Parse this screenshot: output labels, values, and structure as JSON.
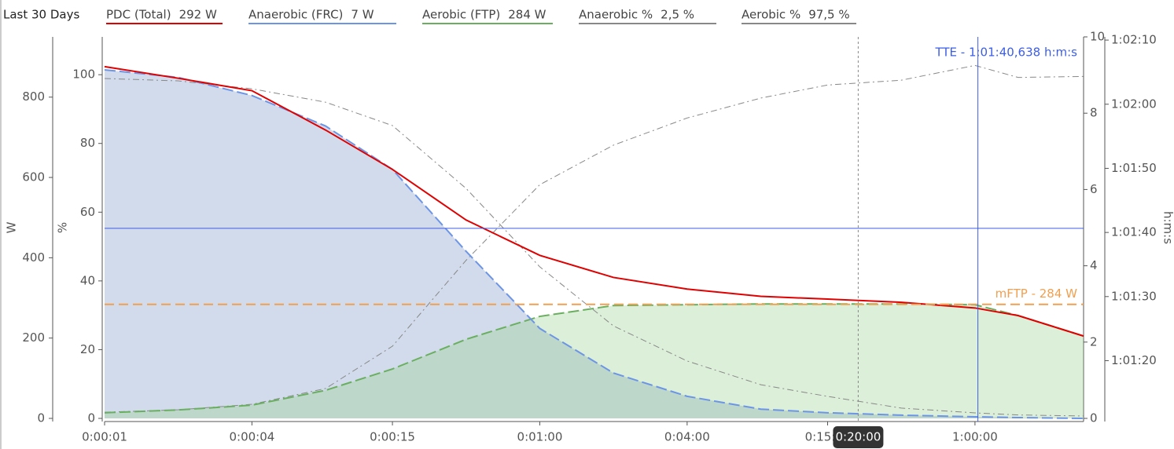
{
  "chart_data": {
    "type": "line",
    "title": "Last 30 Days",
    "log_x": true,
    "x": [
      1,
      2,
      4,
      8,
      15,
      30,
      60,
      120,
      240,
      480,
      900,
      1800,
      3600,
      5400,
      10000
    ],
    "xlim": [
      1,
      10000
    ],
    "xticks": [
      {
        "value": 1,
        "label": "0:00:01"
      },
      {
        "value": 4,
        "label": "0:00:04"
      },
      {
        "value": 15,
        "label": "0:00:15"
      },
      {
        "value": 60,
        "label": "0:01:00"
      },
      {
        "value": 240,
        "label": "0:04:00"
      },
      {
        "value": 900,
        "label": "0:15:00"
      },
      {
        "value": 3600,
        "label": "1:00:00"
      }
    ],
    "axes": [
      {
        "label": "W",
        "lim": [
          0,
          950
        ],
        "ticks": [
          0,
          200,
          400,
          600,
          800
        ]
      },
      {
        "label": "%",
        "lim": [
          0,
          111
        ],
        "ticks": [
          0,
          20,
          40,
          60,
          80,
          100
        ]
      },
      {
        "lim": [
          0,
          10
        ],
        "ticks": [
          0,
          2,
          4,
          6,
          8,
          10
        ]
      },
      {
        "label": "h:m:s",
        "lim": [
          3671,
          3730.5
        ],
        "ticks": [
          {
            "value": 3680,
            "label": "1:01:20"
          },
          {
            "value": 3690,
            "label": "1:01:30"
          },
          {
            "value": 3700,
            "label": "1:01:40"
          },
          {
            "value": 3710,
            "label": "1:01:50"
          },
          {
            "value": 3720,
            "label": "1:02:00"
          },
          {
            "value": 3730,
            "label": "1:02:10"
          }
        ]
      }
    ],
    "series": [
      {
        "name": "PDC (Total)",
        "legend_value": "292 W",
        "color": "#e00000",
        "axis": 0,
        "dash": "solid",
        "values": [
          876,
          847,
          816,
          718,
          620,
          494,
          406,
          351,
          322,
          304,
          297,
          289,
          275,
          256,
          205
        ]
      },
      {
        "name": "Anaerobic (FRC)",
        "legend_value": "7 W",
        "color": "#6d95e6",
        "axis": 0,
        "dash": "dashed",
        "fill_color": "rgba(140,165,205,0.40)",
        "values": [
          868,
          849,
          804,
          728,
          620,
          416,
          224,
          113,
          55,
          23,
          14,
          8,
          4,
          2,
          0
        ]
      },
      {
        "name": "Aerobic (FTP)",
        "legend_value": "284 W",
        "color": "#6aaf5f",
        "axis": 0,
        "dash": "dashed",
        "fill_color": "rgba(150,205,140,0.33)",
        "values": [
          14,
          21,
          33,
          70,
          123,
          197,
          254,
          281,
          283,
          285,
          285,
          285,
          283,
          256,
          205
        ]
      },
      {
        "name": "Anaerobic %",
        "legend_value": "2,5 %",
        "color": "#888888",
        "axis": 1,
        "dash": "dash-dot",
        "values": [
          98.9,
          98.2,
          95.9,
          92,
          85.2,
          66.9,
          44.1,
          26.9,
          16.7,
          9.8,
          6.4,
          3,
          1.6,
          1,
          0.7
        ]
      },
      {
        "name": "Aerobic %",
        "legend_value": "97,5 %",
        "color": "#888888",
        "axis": 1,
        "dash": "dash-dot",
        "values": [
          1.8,
          2.5,
          4.1,
          8.7,
          21,
          46,
          68,
          79.5,
          87.4,
          93.2,
          97,
          98.4,
          102.7,
          99.2,
          99.5
        ]
      }
    ],
    "annotations": {
      "tte": {
        "label": "TTE - 1:01:40,638 h:m:s",
        "x": 3700.638,
        "y": 3700.638,
        "axis": 3,
        "color": "#3c5ee6"
      },
      "mftp": {
        "label": "mFTP - 284 W",
        "y": 284,
        "axis": 0,
        "color": "#f0a050"
      },
      "cursor": {
        "label": "0:20:00",
        "x": 1200
      }
    }
  }
}
